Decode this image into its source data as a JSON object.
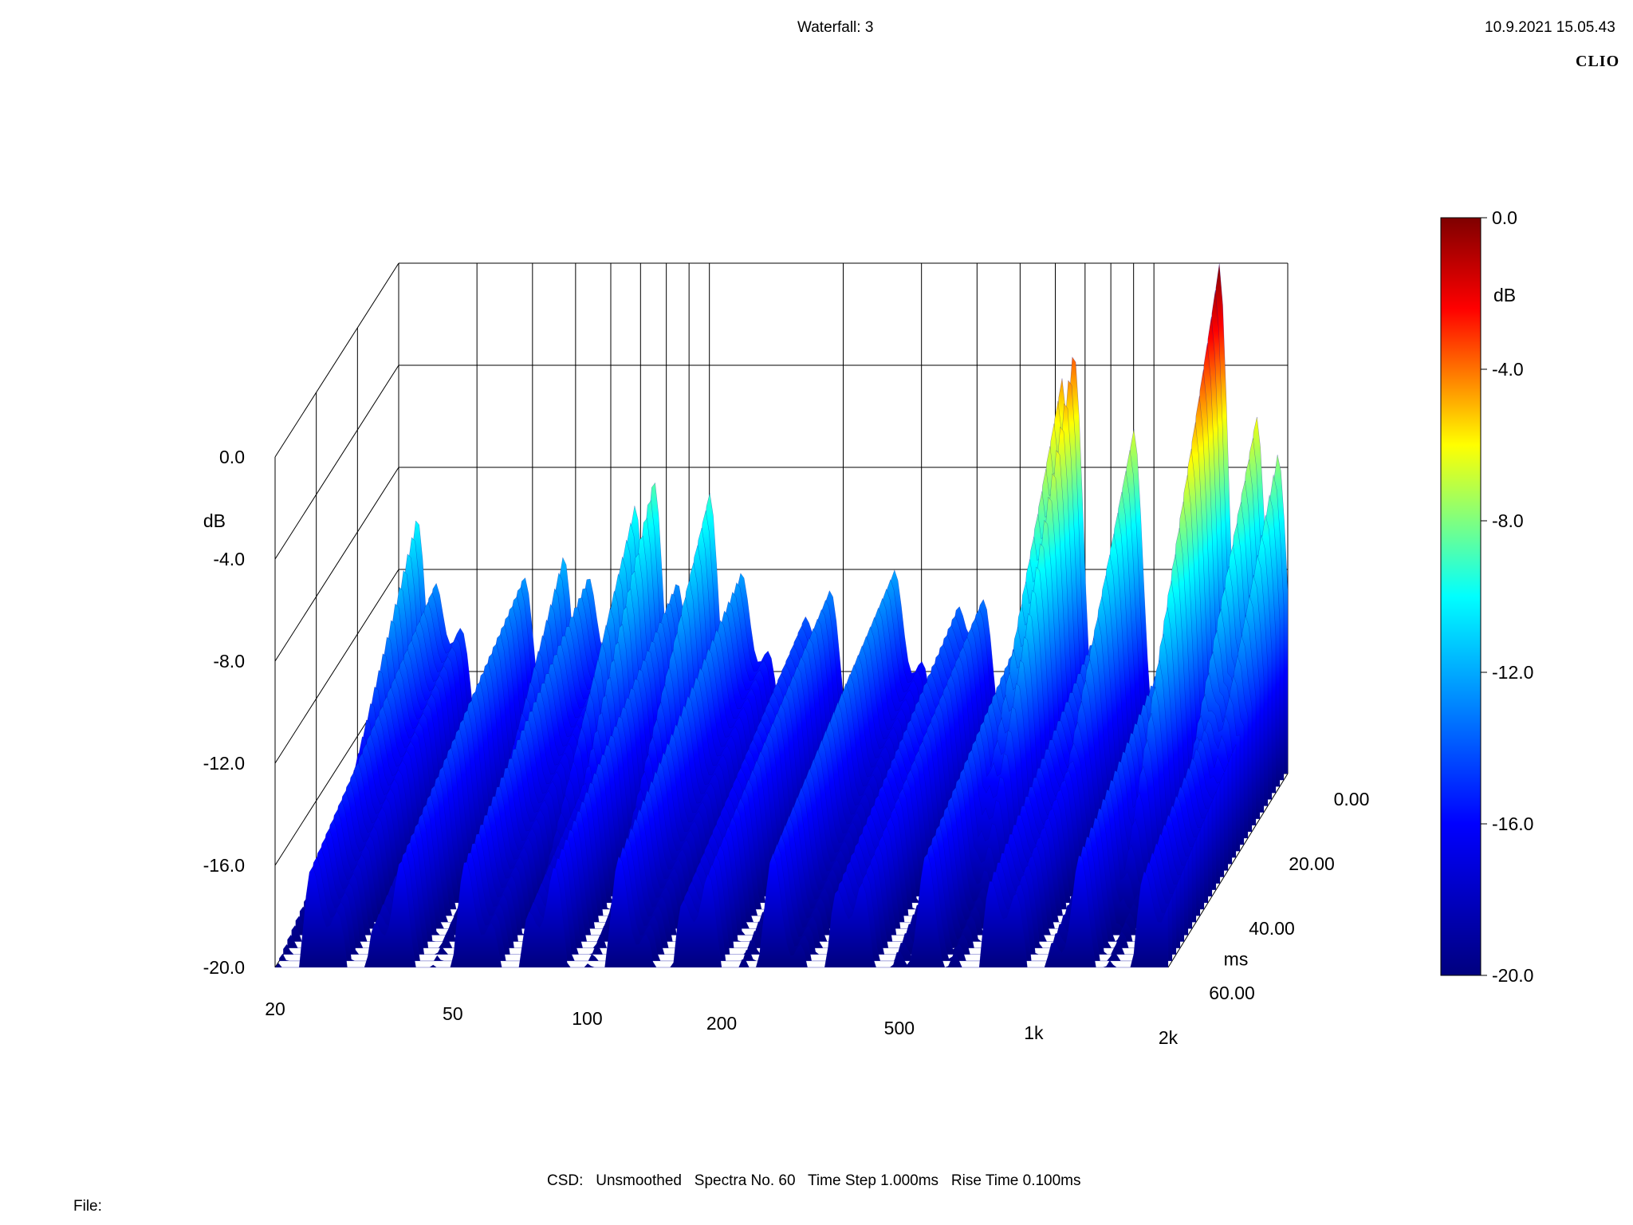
{
  "header": {
    "title": "Waterfall: 3",
    "timestamp": "10.9.2021 15.05.43",
    "brand": "CLIO"
  },
  "footer": {
    "settings": "CSD:   Unsmoothed   Spectra No. 60   Time Step 1.000ms   Rise Time 0.100ms",
    "file_label": "File:"
  },
  "chart_data": {
    "type": "waterfall",
    "title": "Waterfall: 3",
    "x": {
      "scale": "log",
      "range": [
        20,
        2000
      ],
      "ticks": [
        20,
        50,
        100,
        200,
        500,
        1000,
        2000
      ],
      "tick_labels": [
        "20",
        "50",
        "100",
        "200",
        "500",
        "1k",
        "2k"
      ]
    },
    "y": {
      "label": "dB",
      "range": [
        -20.0,
        0.0
      ],
      "tick_labels": [
        "0.0",
        "-4.0",
        "-8.0",
        "-12.0",
        "-16.0",
        "-20.0"
      ]
    },
    "z": {
      "label": "ms",
      "range": [
        0.0,
        60.0
      ],
      "tick_labels": [
        "0.00",
        "20.00",
        "40.00",
        "60.00"
      ]
    },
    "colorbar": {
      "label": "dB",
      "range": [
        -20.0,
        0.0
      ],
      "tick_labels": [
        "0.0",
        "-4.0",
        "-8.0",
        "-12.0",
        "-16.0",
        "-20.0"
      ],
      "colors": [
        "#00007f",
        "#0000ff",
        "#00ffff",
        "#ffff00",
        "#ff0000",
        "#7f0000"
      ]
    },
    "grid": true,
    "spectra_count": 60,
    "time_step_ms": 1.0,
    "rise_time_ms": 0.1,
    "smoothing": "Unsmoothed",
    "peaks": [
      {
        "freq": 22,
        "db": -10.0
      },
      {
        "freq": 47,
        "db": -11.5
      },
      {
        "freq": 68,
        "db": -9.5
      },
      {
        "freq": 75,
        "db": -8.5
      },
      {
        "freq": 100,
        "db": -9.0
      },
      {
        "freq": 620,
        "db": -4.5
      },
      {
        "freq": 660,
        "db": -3.5
      },
      {
        "freq": 900,
        "db": -6.5
      },
      {
        "freq": 1400,
        "db": 0.0
      },
      {
        "freq": 1700,
        "db": -6.0
      },
      {
        "freq": 1900,
        "db": -7.5
      }
    ]
  }
}
